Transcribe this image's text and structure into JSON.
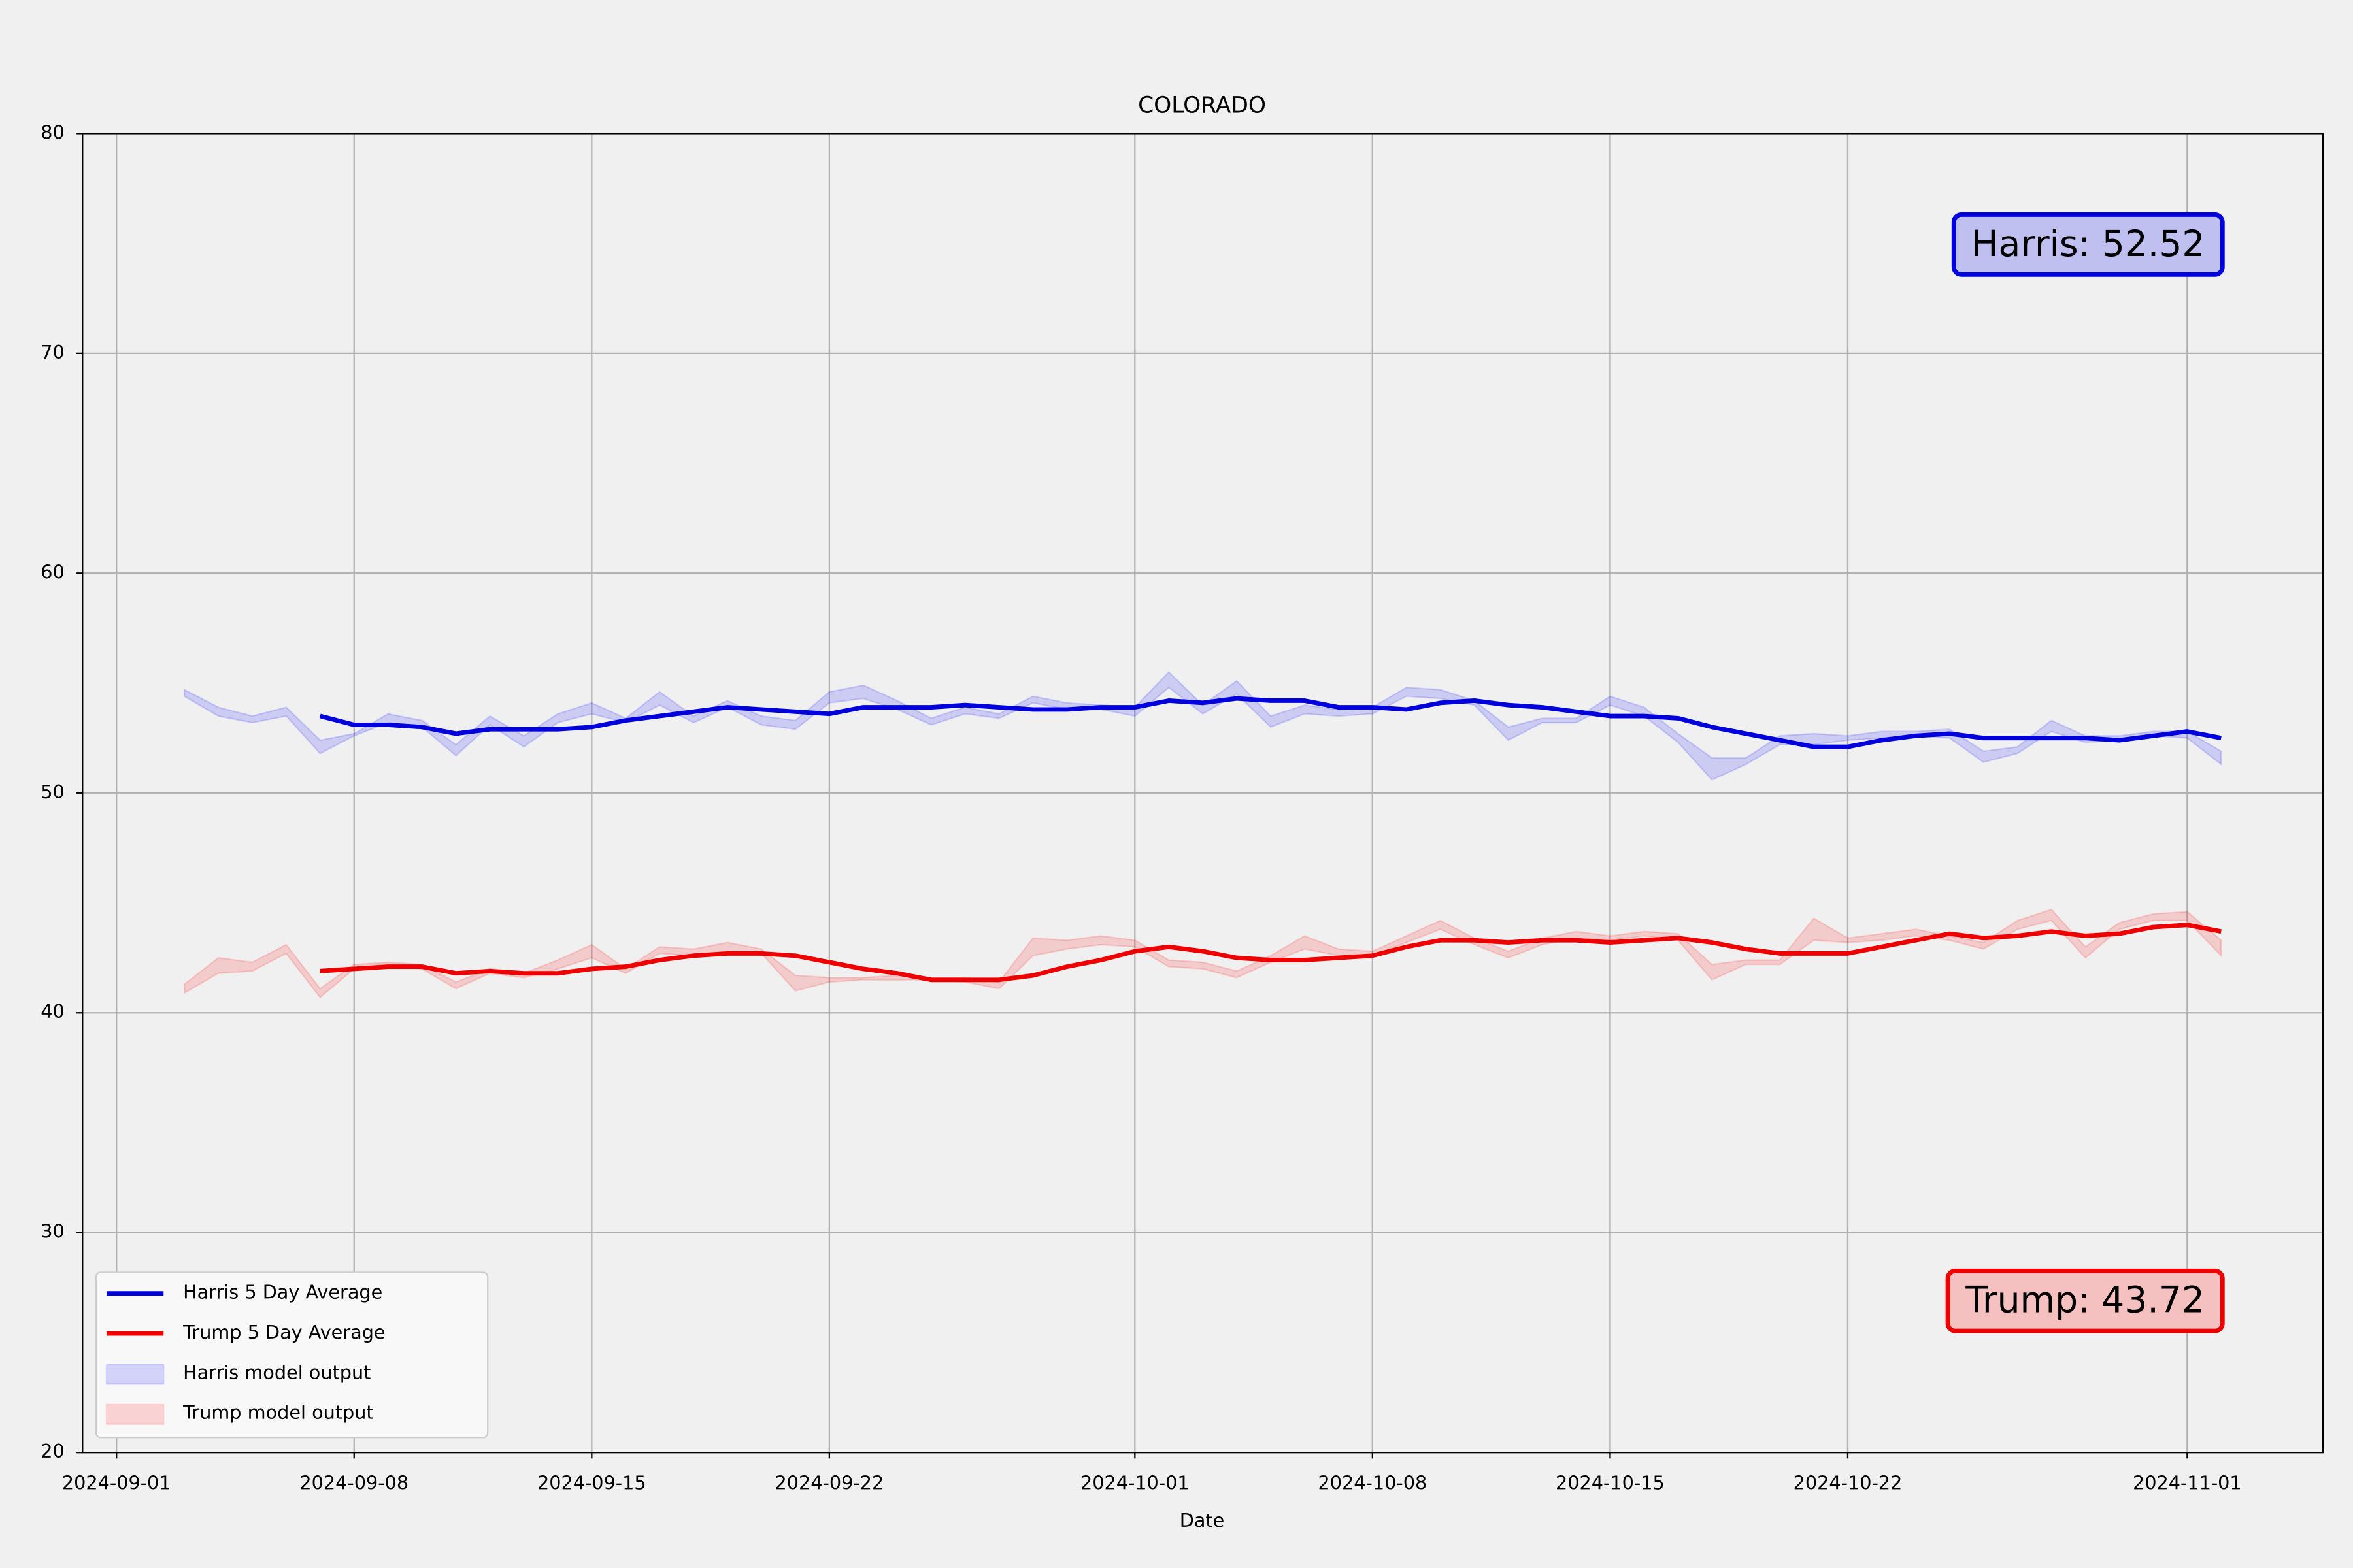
{
  "chart_data": {
    "type": "line",
    "title": "COLORADO",
    "x_label": "Date",
    "x": [
      "2024-09-03",
      "2024-09-04",
      "2024-09-05",
      "2024-09-06",
      "2024-09-07",
      "2024-09-08",
      "2024-09-09",
      "2024-09-10",
      "2024-09-11",
      "2024-09-12",
      "2024-09-13",
      "2024-09-14",
      "2024-09-15",
      "2024-09-16",
      "2024-09-17",
      "2024-09-18",
      "2024-09-19",
      "2024-09-20",
      "2024-09-21",
      "2024-09-22",
      "2024-09-23",
      "2024-09-24",
      "2024-09-25",
      "2024-09-26",
      "2024-09-27",
      "2024-09-28",
      "2024-09-29",
      "2024-09-30",
      "2024-10-01",
      "2024-10-02",
      "2024-10-03",
      "2024-10-04",
      "2024-10-05",
      "2024-10-06",
      "2024-10-07",
      "2024-10-08",
      "2024-10-09",
      "2024-10-10",
      "2024-10-11",
      "2024-10-12",
      "2024-10-13",
      "2024-10-14",
      "2024-10-15",
      "2024-10-16",
      "2024-10-17",
      "2024-10-18",
      "2024-10-19",
      "2024-10-20",
      "2024-10-21",
      "2024-10-22",
      "2024-10-23",
      "2024-10-24",
      "2024-10-25",
      "2024-10-26",
      "2024-10-27",
      "2024-10-28",
      "2024-10-29",
      "2024-10-30",
      "2024-10-31",
      "2024-11-01",
      "2024-11-02"
    ],
    "series": [
      {
        "name": "Harris 5 Day Average",
        "color": "#0000dd",
        "values": [
          null,
          null,
          null,
          null,
          53.5,
          53.1,
          53.1,
          53.0,
          52.7,
          52.9,
          52.9,
          52.9,
          53.0,
          53.3,
          53.5,
          53.7,
          53.9,
          53.8,
          53.7,
          53.6,
          53.9,
          53.9,
          53.9,
          54.0,
          53.9,
          53.8,
          53.8,
          53.9,
          53.9,
          54.2,
          54.1,
          54.3,
          54.2,
          54.2,
          53.9,
          53.9,
          53.8,
          54.1,
          54.2,
          54.0,
          53.9,
          53.7,
          53.5,
          53.5,
          53.4,
          53.0,
          52.7,
          52.4,
          52.1,
          52.1,
          52.4,
          52.6,
          52.7,
          52.5,
          52.5,
          52.5,
          52.5,
          52.4,
          52.6,
          52.8,
          52.5
        ]
      },
      {
        "name": "Trump 5 Day Average",
        "color": "#ee0000",
        "values": [
          null,
          null,
          null,
          null,
          41.9,
          42.0,
          42.1,
          42.1,
          41.8,
          41.9,
          41.8,
          41.8,
          42.0,
          42.1,
          42.4,
          42.6,
          42.7,
          42.7,
          42.6,
          42.3,
          42.0,
          41.8,
          41.5,
          41.5,
          41.5,
          41.7,
          42.1,
          42.4,
          42.8,
          43.0,
          42.8,
          42.5,
          42.4,
          42.4,
          42.5,
          42.6,
          43.0,
          43.3,
          43.3,
          43.2,
          43.3,
          43.3,
          43.2,
          43.3,
          43.4,
          43.2,
          42.9,
          42.7,
          42.7,
          42.7,
          43.0,
          43.3,
          43.6,
          43.4,
          43.5,
          43.7,
          43.5,
          43.6,
          43.9,
          44.0,
          43.7
        ]
      }
    ],
    "bands": [
      {
        "name": "Harris model output",
        "color": "#0000ff",
        "lower": [
          54.4,
          53.5,
          53.2,
          53.5,
          51.8,
          52.6,
          53.2,
          53.0,
          51.7,
          53.1,
          52.1,
          53.2,
          53.6,
          53.2,
          54.0,
          53.2,
          53.9,
          53.1,
          52.9,
          54.1,
          54.3,
          53.8,
          53.1,
          53.6,
          53.4,
          54.1,
          53.8,
          53.8,
          53.5,
          54.8,
          53.6,
          54.5,
          53.0,
          53.6,
          53.5,
          53.6,
          54.4,
          54.3,
          54.0,
          52.4,
          53.2,
          53.2,
          54.0,
          53.5,
          52.3,
          50.6,
          51.3,
          52.2,
          52.2,
          52.4,
          52.5,
          52.6,
          52.5,
          51.4,
          51.8,
          52.8,
          52.3,
          52.4,
          52.6,
          52.5,
          51.3
        ],
        "upper": [
          54.7,
          53.9,
          53.5,
          53.9,
          52.4,
          52.7,
          53.6,
          53.3,
          52.2,
          53.5,
          52.6,
          53.6,
          54.1,
          53.4,
          54.6,
          53.5,
          54.2,
          53.5,
          53.3,
          54.6,
          54.9,
          54.2,
          53.4,
          53.9,
          53.6,
          54.4,
          54.1,
          54.0,
          53.9,
          55.5,
          54.0,
          55.1,
          53.5,
          54.0,
          53.8,
          53.9,
          54.8,
          54.7,
          54.2,
          53.0,
          53.4,
          53.4,
          54.4,
          53.9,
          52.7,
          51.6,
          51.6,
          52.6,
          52.7,
          52.6,
          52.8,
          52.8,
          52.9,
          51.9,
          52.1,
          53.3,
          52.6,
          52.6,
          52.8,
          52.8,
          51.9
        ]
      },
      {
        "name": "Trump model output",
        "color": "#ff0000",
        "lower": [
          40.9,
          41.8,
          41.9,
          42.7,
          40.7,
          42.0,
          42.1,
          42.0,
          41.1,
          41.8,
          41.6,
          42.0,
          42.5,
          41.8,
          42.7,
          42.6,
          42.8,
          42.7,
          41.0,
          41.4,
          41.5,
          41.5,
          41.5,
          41.4,
          41.1,
          42.6,
          42.9,
          43.1,
          43.0,
          42.1,
          42.0,
          41.6,
          42.3,
          42.9,
          42.6,
          42.6,
          43.2,
          43.8,
          43.1,
          42.5,
          43.1,
          43.4,
          43.3,
          43.5,
          43.3,
          41.5,
          42.2,
          42.2,
          43.3,
          43.2,
          43.3,
          43.5,
          43.3,
          42.9,
          43.8,
          44.2,
          42.5,
          43.8,
          44.2,
          44.2,
          42.6
        ],
        "upper": [
          41.3,
          42.5,
          42.3,
          43.1,
          41.1,
          42.2,
          42.3,
          42.2,
          41.4,
          42.0,
          41.8,
          42.4,
          43.1,
          42.0,
          43.0,
          42.9,
          43.2,
          42.9,
          41.7,
          41.6,
          41.6,
          41.7,
          41.6,
          41.6,
          41.4,
          43.4,
          43.3,
          43.5,
          43.3,
          42.4,
          42.3,
          41.9,
          42.6,
          43.5,
          42.9,
          42.8,
          43.5,
          44.2,
          43.4,
          42.8,
          43.4,
          43.7,
          43.5,
          43.7,
          43.6,
          42.2,
          42.4,
          42.4,
          44.3,
          43.4,
          43.6,
          43.8,
          43.5,
          43.2,
          44.2,
          44.7,
          43.0,
          44.1,
          44.5,
          44.6,
          43.3
        ]
      }
    ],
    "annotations": [
      {
        "text": "Harris: 52.52"
      },
      {
        "text": "Trump: 43.72"
      }
    ],
    "xlim": [
      "2024-08-31",
      "2024-11-05"
    ],
    "xticks": [
      "2024-09-01",
      "2024-09-08",
      "2024-09-15",
      "2024-09-22",
      "2024-10-01",
      "2024-10-08",
      "2024-10-15",
      "2024-10-22",
      "2024-11-01"
    ],
    "ylim": [
      20,
      80
    ],
    "yticks": [
      20,
      30,
      40,
      50,
      60,
      70,
      80
    ],
    "grid": true,
    "legend": "lower left"
  }
}
